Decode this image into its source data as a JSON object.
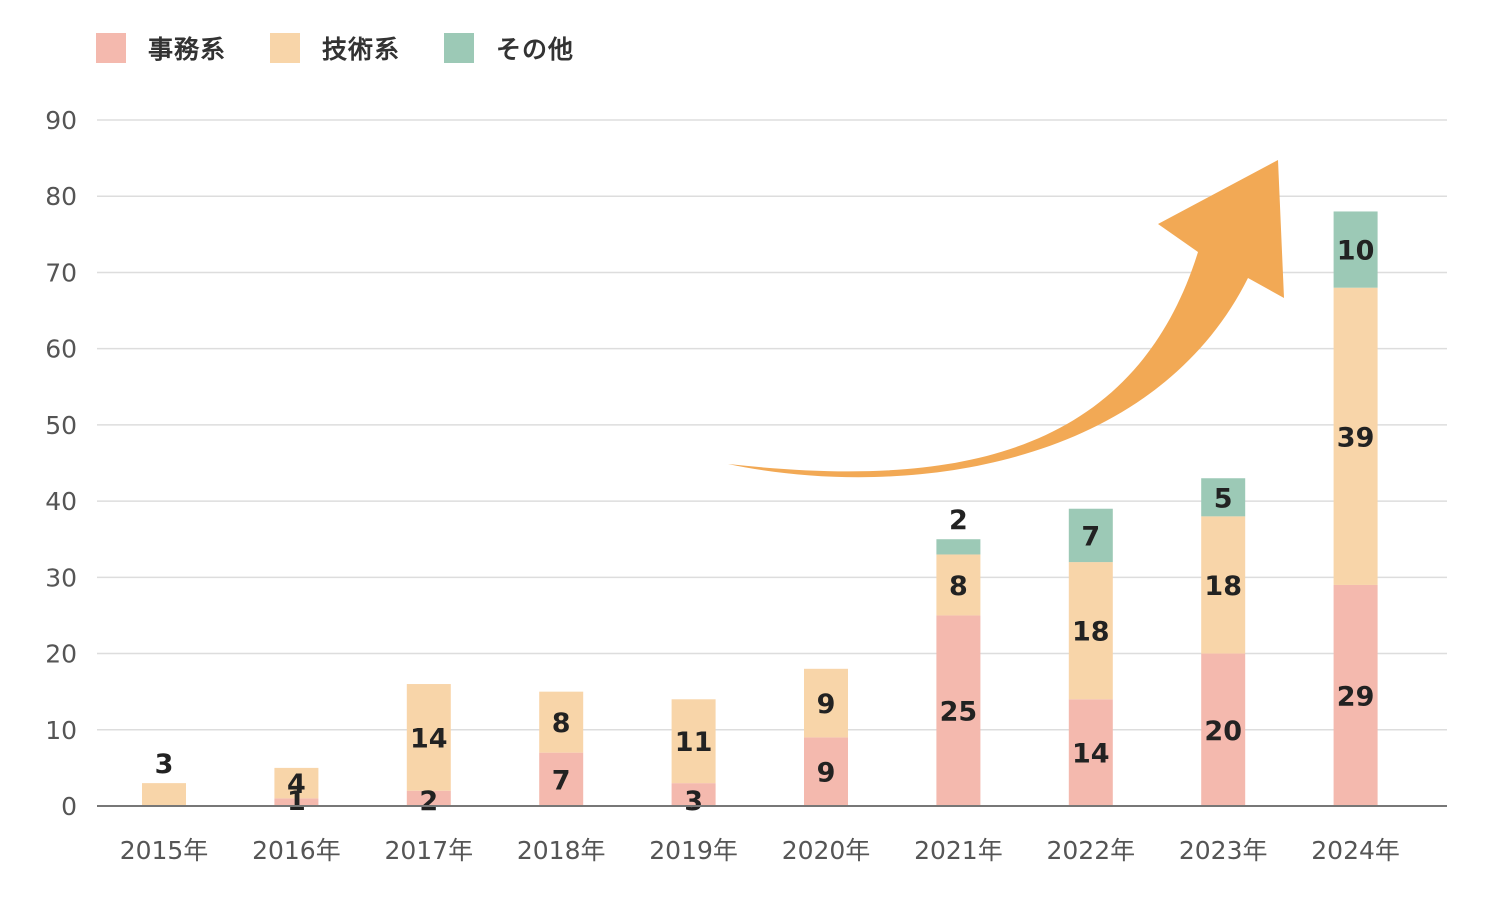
{
  "chart_data": {
    "type": "bar",
    "stacked": true,
    "categories": [
      "2015年",
      "2016年",
      "2017年",
      "2018年",
      "2019年",
      "2020年",
      "2021年",
      "2022年",
      "2023年",
      "2024年"
    ],
    "series": [
      {
        "name": "事務系",
        "color": "#f4b9ae",
        "values": [
          0,
          1,
          2,
          7,
          3,
          9,
          25,
          14,
          20,
          29
        ]
      },
      {
        "name": "技術系",
        "color": "#f8d5a9",
        "values": [
          3,
          4,
          14,
          8,
          11,
          9,
          8,
          18,
          18,
          39
        ]
      },
      {
        "name": "その他",
        "color": "#9cc9b6",
        "values": [
          0,
          0,
          0,
          0,
          0,
          0,
          2,
          7,
          5,
          10
        ]
      }
    ],
    "yticks": [
      "0",
      "10",
      "20",
      "30",
      "40",
      "50",
      "60",
      "70",
      "80",
      "90"
    ],
    "ylim": [
      0,
      90
    ],
    "grid": true,
    "legend_position": "top-left",
    "title": "",
    "xlabel": "",
    "ylabel": "",
    "annotation": {
      "type": "arrow",
      "color": "#f2a955",
      "direction": "up-right"
    }
  }
}
